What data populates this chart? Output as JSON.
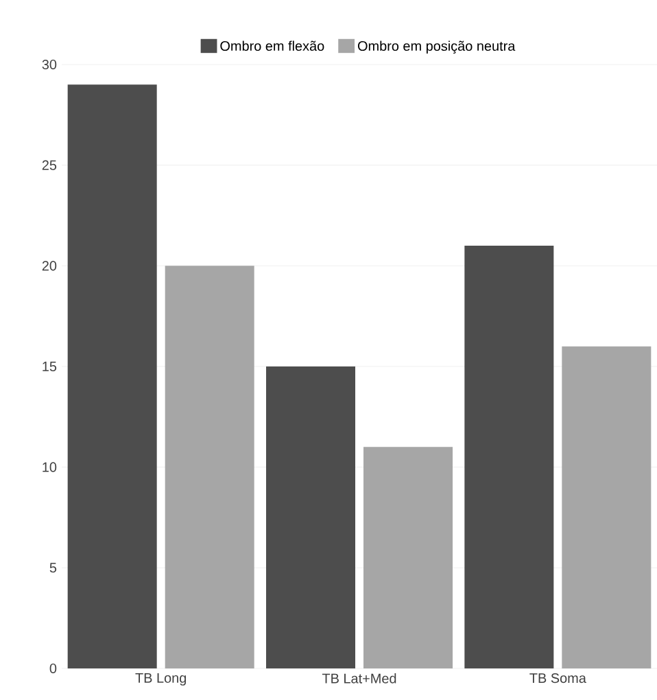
{
  "chart_data": {
    "type": "bar",
    "categories": [
      "TB Long",
      "TB Lat+Med",
      "TB Soma"
    ],
    "series": [
      {
        "name": "Ombro em flexão",
        "color": "#4d4d4d",
        "values": [
          29,
          15,
          21
        ]
      },
      {
        "name": "Ombro em posição neutra",
        "color": "#a6a6a6",
        "values": [
          20,
          11,
          16
        ]
      }
    ],
    "ylim": [
      0,
      30
    ],
    "yticks": [
      0,
      5,
      10,
      15,
      20,
      25,
      30
    ],
    "grid": "y",
    "legend": "top"
  }
}
